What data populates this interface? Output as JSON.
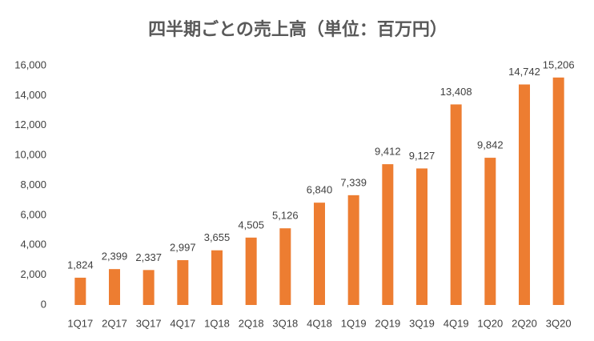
{
  "chart_data": {
    "type": "bar",
    "title": "四半期ごとの売上高（単位：百万円）",
    "categories": [
      "1Q17",
      "2Q17",
      "3Q17",
      "4Q17",
      "1Q18",
      "2Q18",
      "3Q18",
      "4Q18",
      "1Q19",
      "2Q19",
      "3Q19",
      "4Q19",
      "1Q20",
      "2Q20",
      "3Q20"
    ],
    "values": [
      1824,
      2399,
      2337,
      2997,
      3655,
      4505,
      5126,
      6840,
      7339,
      9412,
      9127,
      13408,
      9842,
      14742,
      15206
    ],
    "value_labels": [
      "1,824",
      "2,399",
      "2,337",
      "2,997",
      "3,655",
      "4,505",
      "5,126",
      "6,840",
      "7,339",
      "9,412",
      "9,127",
      "13,408",
      "9,842",
      "14,742",
      "15,206"
    ],
    "color": "#ed7d31",
    "ylim": [
      0,
      16000
    ],
    "yticks": [
      0,
      {
        "value": 2000,
        "label": "2,000"
      },
      {
        "value": 4000,
        "label": "4,000"
      },
      {
        "value": 6000,
        "label": "6,000"
      },
      {
        "value": 8000,
        "label": "8,000"
      },
      {
        "value": 10000,
        "label": "10,000"
      },
      {
        "value": 12000,
        "label": "12,000"
      },
      {
        "value": 14000,
        "label": "14,000"
      },
      {
        "value": 16000,
        "label": "16,000"
      }
    ],
    "grid": false
  }
}
